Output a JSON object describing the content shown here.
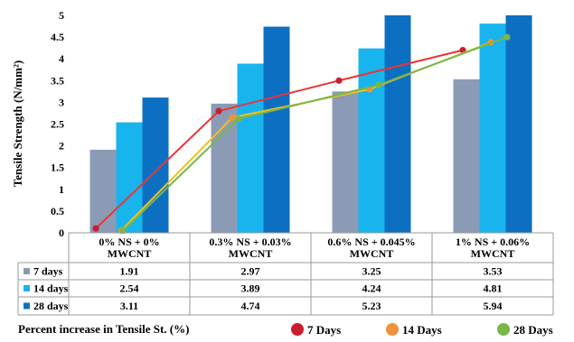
{
  "chart_data": {
    "type": "bar",
    "ylabel": "Tensile Strength (N/mm²)",
    "ylim": [
      0,
      5
    ],
    "y_ticks": [
      "0",
      "0.5",
      "1",
      "1.5",
      "2",
      "2.5",
      "3",
      "3.5",
      "4",
      "4.5",
      "5"
    ],
    "categories": [
      [
        "0% NS + 0%",
        "MWCNT"
      ],
      [
        "0.3% NS + 0.03%",
        "MWCNT"
      ],
      [
        "0.6% NS + 0.045%",
        "MWCNT"
      ],
      [
        "1% NS + 0.06%",
        "MWCNT"
      ]
    ],
    "series": [
      {
        "name": "7 days",
        "color": "#8c9bb5",
        "values": [
          1.91,
          2.97,
          3.25,
          3.53
        ],
        "value_labels": [
          "1.91",
          "2.97",
          "3.25",
          "3.53"
        ]
      },
      {
        "name": "14 days",
        "color": "#18b4ee",
        "values": [
          2.54,
          3.89,
          4.24,
          4.81
        ],
        "value_labels": [
          "2.54",
          "3.89",
          "4.24",
          "4.81"
        ]
      },
      {
        "name": "28 days",
        "color": "#0d6fc2",
        "values": [
          3.11,
          4.74,
          5.23,
          5.94
        ],
        "value_labels": [
          "3.11",
          "4.74",
          "5.23",
          "5.94"
        ]
      }
    ],
    "line_series": [
      {
        "name": "7 Days",
        "line_color": "#ee3333",
        "marker_color": "#c81e32",
        "values": [
          0.1,
          2.8,
          3.5,
          4.2
        ]
      },
      {
        "name": "14 Days",
        "line_color": "#f2c21b",
        "marker_color": "#f0923a",
        "values": [
          0.05,
          2.65,
          3.3,
          4.38
        ]
      },
      {
        "name": "28 Days",
        "line_color": "#7ab648",
        "marker_color": "#7ab648",
        "values": [
          0.05,
          2.62,
          3.4,
          4.5
        ]
      }
    ],
    "secondary_axis_caption": "Percent increase in Tensile St. (%)",
    "legend_position": "bottom",
    "grid": false
  }
}
